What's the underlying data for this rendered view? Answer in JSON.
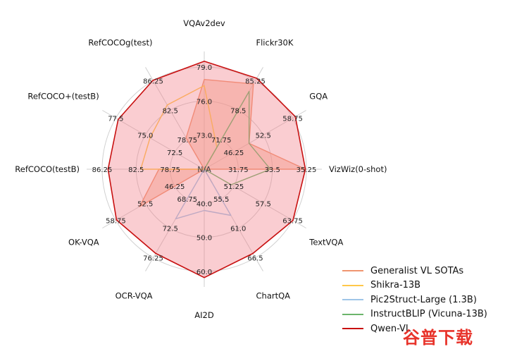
{
  "chart_data": {
    "type": "radar",
    "axes": [
      {
        "name": "VQAv2dev",
        "ticks": [
          "73.0",
          "76.0",
          "79.0"
        ],
        "min": 70.0,
        "max": 79.0,
        "rings": [
          73.0,
          76.0,
          79.0
        ]
      },
      {
        "name": "Flickr30K",
        "ticks": [
          "71.75",
          "78.5",
          "85.25"
        ],
        "min": 65.0,
        "max": 85.25,
        "rings": [
          71.75,
          78.5,
          85.25
        ]
      },
      {
        "name": "GQA",
        "ticks": [
          "46.25",
          "52.5",
          "58.75"
        ],
        "min": 40.0,
        "max": 58.75,
        "rings": [
          46.25,
          52.5,
          58.75
        ]
      },
      {
        "name": "VizWiz(0-shot)",
        "ticks": [
          "31.75",
          "33.5",
          "35.25"
        ],
        "min": 30.0,
        "max": 35.25,
        "rings": [
          31.75,
          33.5,
          35.25
        ]
      },
      {
        "name": "TextVQA",
        "ticks": [
          "51.25",
          "57.5",
          "63.75"
        ],
        "min": 45.0,
        "max": 63.75,
        "rings": [
          51.25,
          57.5,
          63.75
        ]
      },
      {
        "name": "ChartQA",
        "ticks": [
          "55.5",
          "61.0",
          "66.5"
        ],
        "min": 50.0,
        "max": 66.5,
        "rings": [
          55.5,
          61.0,
          66.5
        ]
      },
      {
        "name": "AI2D",
        "ticks": [
          "40.0",
          "50.0",
          "60.0"
        ],
        "min": 30.0,
        "max": 60.0,
        "rings": [
          40.0,
          50.0,
          60.0
        ]
      },
      {
        "name": "OCR-VQA",
        "ticks": [
          "68.75",
          "72.5",
          "76.25"
        ],
        "min": 65.0,
        "max": 76.25,
        "rings": [
          68.75,
          72.5,
          76.25
        ]
      },
      {
        "name": "OK-VQA",
        "ticks": [
          "46.25",
          "52.5",
          "58.75"
        ],
        "min": 40.0,
        "max": 58.75,
        "rings": [
          46.25,
          52.5,
          58.75
        ]
      },
      {
        "name": "RefCOCO(testB)",
        "ticks": [
          "78.75",
          "82.5",
          "86.25"
        ],
        "min": 75.0,
        "max": 86.25,
        "rings": [
          78.75,
          82.5,
          86.25
        ]
      },
      {
        "name": "RefCOCO+(testB)",
        "ticks": [
          "72.5",
          "75.0",
          "77.5"
        ],
        "min": 70.0,
        "max": 77.5,
        "rings": [
          72.5,
          75.0,
          77.5
        ]
      },
      {
        "name": "RefCOCOg(test)",
        "ticks": [
          "78.75",
          "82.5",
          "86.25"
        ],
        "min": 75.0,
        "max": 86.25,
        "rings": [
          78.75,
          82.5,
          86.25
        ]
      }
    ],
    "center_label": "N/A",
    "series": [
      {
        "name": "Generalist VL SOTAs",
        "color": "#f0956f",
        "fill": "#f3a88a",
        "fill_opacity": 0.45,
        "values": [
          77.9,
          84.5,
          49.5,
          35.2,
          43.0,
          52.5,
          30.0,
          65.0,
          53.7,
          80.0,
          70.0,
          79.0
        ]
      },
      {
        "name": "Shikra-13B",
        "color": "#ffc84a",
        "fill": "none",
        "fill_opacity": 0,
        "values": [
          77.36,
          70.0,
          40.0,
          30.0,
          45.0,
          50.0,
          30.0,
          65.0,
          40.0,
          82.0,
          74.6,
          83.16
        ]
      },
      {
        "name": "Pic2Struct-Large (1.3B)",
        "color": "#9fc5e8",
        "fill": "none",
        "fill_opacity": 0,
        "values": [
          70.0,
          65.0,
          40.0,
          30.0,
          45.0,
          58.6,
          42.1,
          71.3,
          40.0,
          75.0,
          70.0,
          75.0
        ]
      },
      {
        "name": "InstructBLIP (Vicuna-13B)",
        "color": "#6bb56b",
        "fill": "none",
        "fill_opacity": 0,
        "values": [
          70.0,
          82.8,
          49.5,
          33.4,
          50.7,
          50.0,
          30.0,
          65.0,
          40.0,
          75.0,
          70.0,
          75.0
        ]
      },
      {
        "name": "Qwen-VL",
        "color": "#c81010",
        "fill": "#f27b86",
        "fill_opacity": 0.38,
        "values": [
          79.5,
          85.8,
          59.3,
          35.2,
          63.8,
          65.7,
          62.3,
          75.7,
          58.6,
          85.6,
          77.3,
          86.3
        ]
      }
    ],
    "legend_position": "bottom-right",
    "grid": true
  },
  "watermark": "谷普下载"
}
